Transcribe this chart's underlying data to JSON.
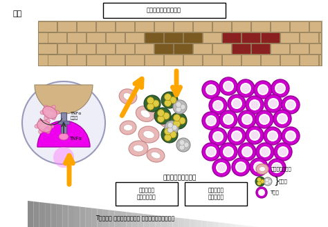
{
  "title_top": "表皮細脹の細脹死促進",
  "label_skin": "皮膚",
  "label_main": "主体となる炎症形態",
  "label_type1": "自己炎症型\n（非典型的）",
  "label_type2": "自己免疫型\n（典型的）",
  "label_macro": "マクロファージ",
  "label_granulo": "顔粒球",
  "label_tcell": "T細脹",
  "label_tnfa1": "TNFα\n受容体",
  "label_tnfa2": "TNFα",
  "label_bottom": "T細脹免疫 バランスの前駅（ 自己免疫疾患の発症）",
  "skin_color": "#d4b483",
  "skin_red": "#8b2020",
  "skin_dark": "#7a5a20",
  "arrow_color": "#ffa500",
  "magenta": "#dd00dd",
  "pink_macro": "#e8b0b0",
  "pink_macro_edge": "#c08080",
  "green_gran": "#336633",
  "yellow_gran": "#ddcc44",
  "gray_gran": "#888888",
  "purple_t": "#cc00cc",
  "purple_t_edge": "#990099"
}
